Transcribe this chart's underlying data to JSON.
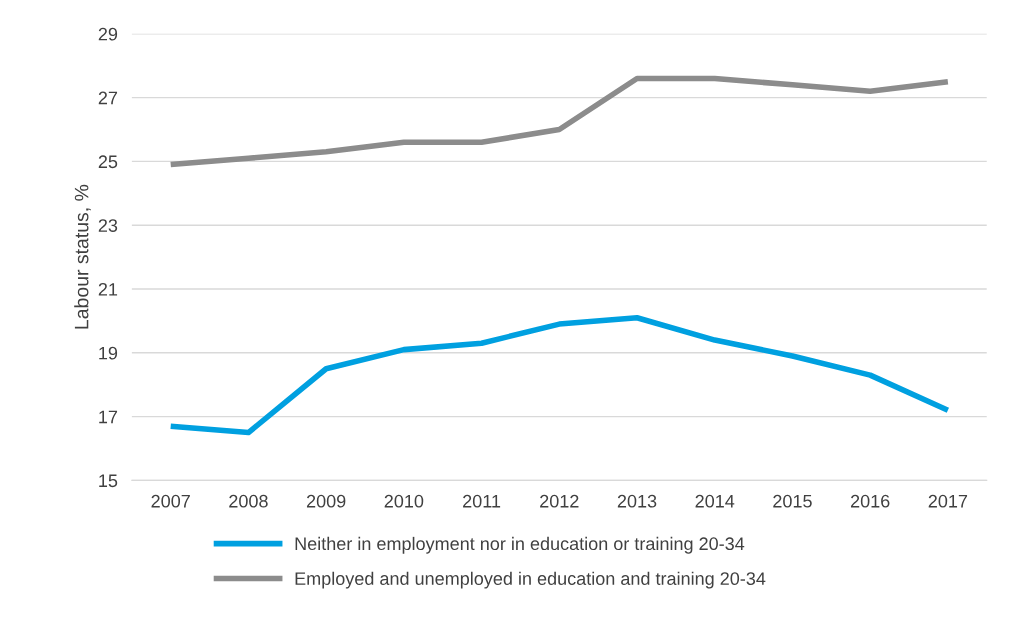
{
  "chart_data": {
    "type": "line",
    "ylabel": "Labour status, %",
    "categories": [
      "2007",
      "2008",
      "2009",
      "2010",
      "2011",
      "2012",
      "2013",
      "2014",
      "2015",
      "2016",
      "2017"
    ],
    "series": [
      {
        "name": "Neither in employment nor in education or training 20-34",
        "color": "#00a0e0",
        "values": [
          16.7,
          16.5,
          18.5,
          19.1,
          19.3,
          19.9,
          20.1,
          19.4,
          18.9,
          18.3,
          17.2
        ]
      },
      {
        "name": "Employed and unemployed in education and training 20-34",
        "color": "#8c8c8c",
        "values": [
          24.9,
          25.1,
          25.3,
          25.6,
          25.6,
          26.0,
          27.6,
          27.6,
          27.4,
          27.2,
          27.5
        ]
      }
    ],
    "ylim": [
      15,
      29
    ],
    "yticks": [
      15,
      17,
      19,
      21,
      23,
      25,
      27,
      29
    ],
    "grid": "y",
    "legend": "bottom",
    "marker": "none",
    "line_style": "solid"
  }
}
